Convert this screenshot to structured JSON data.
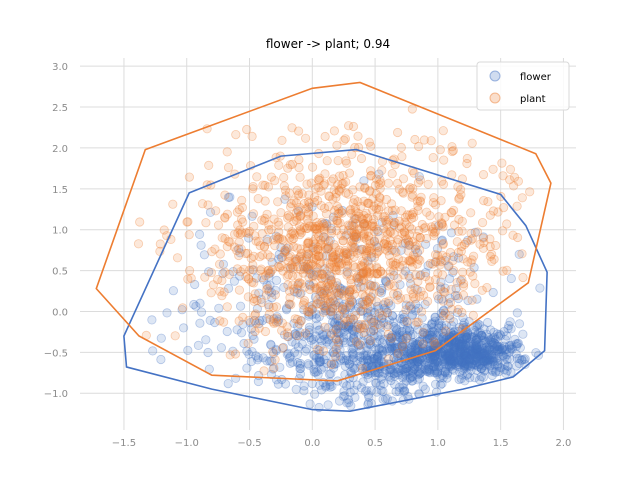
{
  "chart_data": {
    "type": "scatter",
    "title": "flower -> plant; 0.94",
    "xlabel": "",
    "ylabel": "",
    "xlim": [
      -1.85,
      2.1
    ],
    "ylim": [
      -1.45,
      3.1
    ],
    "xticks": [
      "−1.5",
      "−1.0",
      "−0.5",
      "0.0",
      "0.5",
      "1.0",
      "1.5",
      "2.0"
    ],
    "xtick_values": [
      -1.5,
      -1.0,
      -0.5,
      0.0,
      0.5,
      1.0,
      1.5,
      2.0
    ],
    "yticks": [
      "−1.0",
      "−0.5",
      "0.0",
      "0.5",
      "1.0",
      "1.5",
      "2.0",
      "2.5",
      "3.0"
    ],
    "ytick_values": [
      -1.0,
      -0.5,
      0.0,
      0.5,
      1.0,
      1.5,
      2.0,
      2.5,
      3.0
    ],
    "grid": true,
    "legend_position": "top-right",
    "series": [
      {
        "name": "flower",
        "color": "#4472c4",
        "point_count": 1500,
        "clusters": [
          {
            "cx": 1.2,
            "cy": -0.5,
            "sx": 0.25,
            "sy": 0.15,
            "weight": 0.4
          },
          {
            "cx": 0.5,
            "cy": -0.5,
            "sx": 0.45,
            "sy": 0.35,
            "weight": 0.4
          },
          {
            "cx": 0.2,
            "cy": 0.1,
            "sx": 0.6,
            "sy": 0.6,
            "weight": 0.2
          }
        ],
        "hull": [
          [
            -1.5,
            -0.3
          ],
          [
            -1.48,
            -0.68
          ],
          [
            -0.8,
            -0.95
          ],
          [
            0.0,
            -1.2
          ],
          [
            0.3,
            -1.22
          ],
          [
            1.2,
            -0.95
          ],
          [
            1.6,
            -0.8
          ],
          [
            1.85,
            -0.48
          ],
          [
            1.87,
            0.48
          ],
          [
            1.7,
            1.05
          ],
          [
            1.5,
            1.43
          ],
          [
            0.35,
            1.98
          ],
          [
            -0.25,
            1.9
          ],
          [
            -0.98,
            1.45
          ]
        ]
      },
      {
        "name": "plant",
        "color": "#ed7d31",
        "point_count": 1100,
        "clusters": [
          {
            "cx": 0.2,
            "cy": 0.6,
            "sx": 0.5,
            "sy": 0.5,
            "weight": 0.6
          },
          {
            "cx": 0.4,
            "cy": 1.1,
            "sx": 0.7,
            "sy": 0.6,
            "weight": 0.4
          }
        ],
        "hull": [
          [
            -1.72,
            0.28
          ],
          [
            -1.38,
            -0.3
          ],
          [
            -0.8,
            -0.78
          ],
          [
            0.2,
            -0.85
          ],
          [
            0.98,
            -0.48
          ],
          [
            1.72,
            0.35
          ],
          [
            1.9,
            1.57
          ],
          [
            1.78,
            1.93
          ],
          [
            0.38,
            2.8
          ],
          [
            0.0,
            2.73
          ],
          [
            -1.33,
            1.98
          ]
        ]
      }
    ]
  }
}
